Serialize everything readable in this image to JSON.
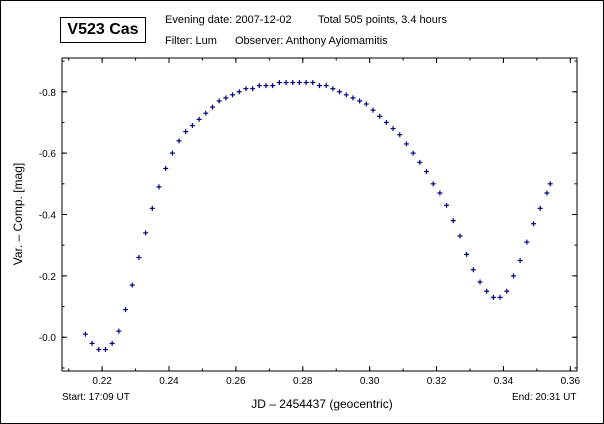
{
  "header": {
    "star": "V523 Cas",
    "evening": "Evening date: 2007-12-02",
    "total": "Total 505 points, 3.4 hours",
    "filter": "Filter: Lum",
    "observer": "Observer: Anthony Ayiomamitis"
  },
  "footer": {
    "start": "Start: 17:09 UT",
    "end": "End: 20:31 UT"
  },
  "chart_data": {
    "type": "scatter",
    "title": "V523 Cas",
    "xlabel": "JD – 2454437  (geocentric)",
    "ylabel": "Var. – Comp. [mag]",
    "xlim": [
      0.208,
      0.362
    ],
    "ylim": [
      0.11,
      -0.91
    ],
    "y_inverted": true,
    "x_ticks": [
      0.22,
      0.24,
      0.26,
      0.28,
      0.3,
      0.32,
      0.34,
      0.36
    ],
    "x_tick_labels": [
      "0.22",
      "0.24",
      "0.26",
      "0.28",
      "0.30",
      "0.32",
      "0.34",
      "0.36"
    ],
    "y_ticks": [
      0.0,
      -0.2,
      -0.4,
      -0.6,
      -0.8
    ],
    "y_tick_labels": [
      "-0.0",
      "-0.2",
      "-0.4",
      "-0.6",
      "-0.8"
    ],
    "marker": "plus",
    "marker_color": "#000080",
    "grid": false,
    "series": [
      {
        "name": "V523 Cas (505 points)",
        "x": [
          0.215,
          0.217,
          0.219,
          0.221,
          0.223,
          0.225,
          0.227,
          0.229,
          0.231,
          0.233,
          0.235,
          0.237,
          0.239,
          0.241,
          0.243,
          0.245,
          0.247,
          0.249,
          0.251,
          0.253,
          0.255,
          0.257,
          0.259,
          0.261,
          0.263,
          0.265,
          0.267,
          0.269,
          0.271,
          0.273,
          0.275,
          0.277,
          0.279,
          0.281,
          0.283,
          0.285,
          0.287,
          0.289,
          0.291,
          0.293,
          0.295,
          0.297,
          0.299,
          0.301,
          0.303,
          0.305,
          0.307,
          0.309,
          0.311,
          0.313,
          0.315,
          0.317,
          0.319,
          0.321,
          0.323,
          0.325,
          0.327,
          0.329,
          0.331,
          0.333,
          0.335,
          0.337,
          0.339,
          0.341,
          0.343,
          0.345,
          0.347,
          0.349,
          0.351,
          0.353,
          0.354
        ],
        "y": [
          -0.01,
          0.02,
          0.04,
          0.04,
          0.02,
          -0.02,
          -0.09,
          -0.17,
          -0.26,
          -0.34,
          -0.42,
          -0.49,
          -0.55,
          -0.6,
          -0.64,
          -0.67,
          -0.69,
          -0.71,
          -0.73,
          -0.75,
          -0.77,
          -0.78,
          -0.79,
          -0.8,
          -0.81,
          -0.81,
          -0.82,
          -0.82,
          -0.82,
          -0.83,
          -0.83,
          -0.83,
          -0.83,
          -0.83,
          -0.83,
          -0.82,
          -0.82,
          -0.81,
          -0.8,
          -0.79,
          -0.78,
          -0.77,
          -0.76,
          -0.74,
          -0.72,
          -0.7,
          -0.68,
          -0.66,
          -0.63,
          -0.6,
          -0.57,
          -0.54,
          -0.5,
          -0.47,
          -0.43,
          -0.38,
          -0.33,
          -0.27,
          -0.22,
          -0.18,
          -0.15,
          -0.13,
          -0.13,
          -0.15,
          -0.2,
          -0.25,
          -0.31,
          -0.37,
          -0.42,
          -0.47,
          -0.5
        ]
      }
    ]
  }
}
